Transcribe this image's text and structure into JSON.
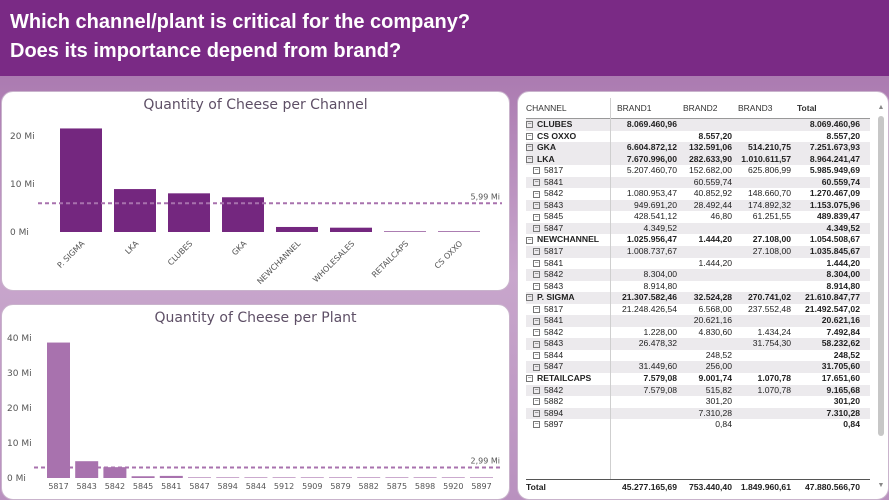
{
  "header": {
    "line1": "Which channel/plant is critical for the company?",
    "line2": "Does its importance depend from brand?"
  },
  "colors": {
    "bar_dark": "#74277f",
    "bar_light": "#a872ae",
    "ref_line": "#a872ae",
    "header": "#7a2a85"
  },
  "chart_data": [
    {
      "type": "bar",
      "title": "Quantity of Cheese per Channel",
      "categories": [
        "P. SIGMA",
        "LKA",
        "CLUBES",
        "GKA",
        "NEWCHANNEL",
        "WHOLESALES",
        "RETAILCAPS",
        "CS OXXO"
      ],
      "values": [
        21.61,
        8.96,
        8.07,
        7.25,
        1.05,
        0.9,
        0.02,
        0.01
      ],
      "yticks": [
        "0 Mi",
        "10 Mi",
        "20 Mi"
      ],
      "ylim": [
        0,
        24
      ],
      "reference_line": {
        "value": 5.99,
        "label": "5,99 Mi"
      }
    },
    {
      "type": "bar",
      "title": "Quantity of Cheese per Plant",
      "categories": [
        "5817",
        "5843",
        "5842",
        "5845",
        "5841",
        "5847",
        "5894",
        "5844",
        "5912",
        "5909",
        "5879",
        "5882",
        "5875",
        "5898",
        "5920",
        "5897"
      ],
      "values": [
        38.7,
        4.8,
        3.1,
        0.5,
        0.6,
        0.1,
        0.02,
        0.01,
        0.01,
        0.01,
        0.01,
        0.01,
        0.01,
        0.01,
        0.01,
        0.01
      ],
      "yticks": [
        "0 Mi",
        "10 Mi",
        "20 Mi",
        "30 Mi",
        "40 Mi"
      ],
      "ylim": [
        0,
        42
      ],
      "reference_line": {
        "value": 2.99,
        "label": "2,99 Mi"
      }
    },
    {
      "type": "table",
      "columns": [
        "CHANNEL",
        "BRAND1",
        "BRAND2",
        "BRAND3",
        "Total"
      ],
      "rows": [
        {
          "level": 1,
          "label": "CLUBES",
          "b1": "8.069.460,96",
          "b2": "",
          "b3": "",
          "total": "8.069.460,96",
          "shade": true
        },
        {
          "level": 1,
          "label": "CS OXXO",
          "b1": "",
          "b2": "8.557,20",
          "b3": "",
          "total": "8.557,20",
          "shade": false
        },
        {
          "level": 1,
          "label": "GKA",
          "b1": "6.604.872,12",
          "b2": "132.591,06",
          "b3": "514.210,75",
          "total": "7.251.673,93",
          "shade": true
        },
        {
          "level": 1,
          "label": "LKA",
          "b1": "7.670.996,00",
          "b2": "282.633,90",
          "b3": "1.010.611,57",
          "total": "8.964.241,47",
          "shade": true
        },
        {
          "level": 2,
          "label": "5817",
          "b1": "5.207.460,70",
          "b2": "152.682,00",
          "b3": "625.806,99",
          "total": "5.985.949,69",
          "shade": false
        },
        {
          "level": 2,
          "label": "5841",
          "b1": "",
          "b2": "60.559,74",
          "b3": "",
          "total": "60.559,74",
          "shade": true
        },
        {
          "level": 2,
          "label": "5842",
          "b1": "1.080.953,47",
          "b2": "40.852,92",
          "b3": "148.660,70",
          "total": "1.270.467,09",
          "shade": false
        },
        {
          "level": 2,
          "label": "5843",
          "b1": "949.691,20",
          "b2": "28.492,44",
          "b3": "174.892,32",
          "total": "1.153.075,96",
          "shade": true
        },
        {
          "level": 2,
          "label": "5845",
          "b1": "428.541,12",
          "b2": "46,80",
          "b3": "61.251,55",
          "total": "489.839,47",
          "shade": false
        },
        {
          "level": 2,
          "label": "5847",
          "b1": "4.349,52",
          "b2": "",
          "b3": "",
          "total": "4.349,52",
          "shade": true
        },
        {
          "level": 1,
          "label": "NEWCHANNEL",
          "b1": "1.025.956,47",
          "b2": "1.444,20",
          "b3": "27.108,00",
          "total": "1.054.508,67",
          "shade": false
        },
        {
          "level": 2,
          "label": "5817",
          "b1": "1.008.737,67",
          "b2": "",
          "b3": "27.108,00",
          "total": "1.035.845,67",
          "shade": true
        },
        {
          "level": 2,
          "label": "5841",
          "b1": "",
          "b2": "1.444,20",
          "b3": "",
          "total": "1.444,20",
          "shade": false
        },
        {
          "level": 2,
          "label": "5842",
          "b1": "8.304,00",
          "b2": "",
          "b3": "",
          "total": "8.304,00",
          "shade": true
        },
        {
          "level": 2,
          "label": "5843",
          "b1": "8.914,80",
          "b2": "",
          "b3": "",
          "total": "8.914,80",
          "shade": false
        },
        {
          "level": 1,
          "label": "P. SIGMA",
          "b1": "21.307.582,46",
          "b2": "32.524,28",
          "b3": "270.741,02",
          "total": "21.610.847,77",
          "shade": true
        },
        {
          "level": 2,
          "label": "5817",
          "b1": "21.248.426,54",
          "b2": "6.568,00",
          "b3": "237.552,48",
          "total": "21.492.547,02",
          "shade": false
        },
        {
          "level": 2,
          "label": "5841",
          "b1": "",
          "b2": "20.621,16",
          "b3": "",
          "total": "20.621,16",
          "shade": true
        },
        {
          "level": 2,
          "label": "5842",
          "b1": "1.228,00",
          "b2": "4.830,60",
          "b3": "1.434,24",
          "total": "7.492,84",
          "shade": false
        },
        {
          "level": 2,
          "label": "5843",
          "b1": "26.478,32",
          "b2": "",
          "b3": "31.754,30",
          "total": "58.232,62",
          "shade": true
        },
        {
          "level": 2,
          "label": "5844",
          "b1": "",
          "b2": "248,52",
          "b3": "",
          "total": "248,52",
          "shade": false
        },
        {
          "level": 2,
          "label": "5847",
          "b1": "31.449,60",
          "b2": "256,00",
          "b3": "",
          "total": "31.705,60",
          "shade": true
        },
        {
          "level": 1,
          "label": "RETAILCAPS",
          "b1": "7.579,08",
          "b2": "9.001,74",
          "b3": "1.070,78",
          "total": "17.651,60",
          "shade": false
        },
        {
          "level": 2,
          "label": "5842",
          "b1": "7.579,08",
          "b2": "515,82",
          "b3": "1.070,78",
          "total": "9.165,68",
          "shade": true
        },
        {
          "level": 2,
          "label": "5882",
          "b1": "",
          "b2": "301,20",
          "b3": "",
          "total": "301,20",
          "shade": false
        },
        {
          "level": 2,
          "label": "5894",
          "b1": "",
          "b2": "7.310,28",
          "b3": "",
          "total": "7.310,28",
          "shade": true
        },
        {
          "level": 2,
          "label": "5897",
          "b1": "",
          "b2": "0,84",
          "b3": "",
          "total": "0,84",
          "shade": false
        }
      ],
      "total": {
        "label": "Total",
        "b1": "45.277.165,69",
        "b2": "753.440,40",
        "b3": "1.849.960,61",
        "total": "47.880.566,70"
      }
    }
  ]
}
